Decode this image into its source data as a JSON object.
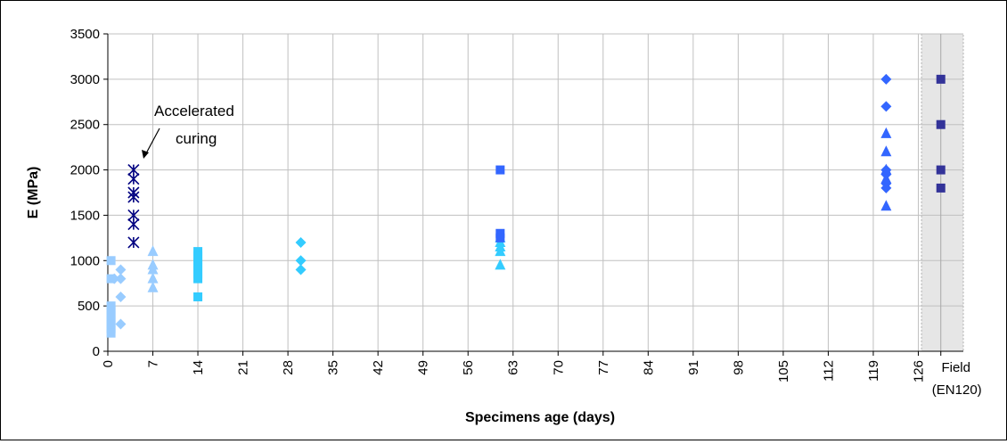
{
  "chart_data": {
    "type": "scatter",
    "title": "",
    "xlabel": "Specimens age (days)",
    "ylabel": "E (MPa)",
    "ylim": [
      0,
      3500
    ],
    "y_ticks": [
      0,
      500,
      1000,
      1500,
      2000,
      2500,
      3000,
      3500
    ],
    "xlim": [
      0,
      133
    ],
    "x_ticks": [
      0,
      7,
      14,
      21,
      28,
      35,
      42,
      49,
      56,
      63,
      70,
      77,
      84,
      91,
      98,
      105,
      112,
      119,
      126
    ],
    "field_label_line1": "Field",
    "field_label_line2": "(EN120)",
    "field_x_position": 129.5,
    "field_zone": [
      126.5,
      133
    ],
    "grid": true,
    "legend": "none",
    "annotation": {
      "line1": "Accelerated",
      "line2": "curing",
      "points_to": {
        "x": 4,
        "y": 2000
      }
    },
    "series": [
      {
        "marker": "square",
        "color": "#99ccff",
        "points": [
          [
            0.5,
            1000
          ],
          [
            0.5,
            800
          ],
          [
            0.5,
            500
          ],
          [
            0.5,
            450
          ],
          [
            0.5,
            400
          ],
          [
            0.5,
            350
          ],
          [
            0.5,
            300
          ],
          [
            0.5,
            250
          ],
          [
            0.5,
            200
          ]
        ]
      },
      {
        "marker": "diamond",
        "color": "#99ccff",
        "points": [
          [
            1,
            800
          ],
          [
            2,
            900
          ],
          [
            2,
            800
          ],
          [
            2,
            600
          ],
          [
            2,
            300
          ]
        ]
      },
      {
        "marker": "star",
        "color": "#000080",
        "points": [
          [
            4,
            2000
          ],
          [
            4,
            1900
          ],
          [
            4,
            1750
          ],
          [
            4,
            1700
          ],
          [
            4,
            1500
          ],
          [
            4,
            1400
          ],
          [
            4,
            1200
          ]
        ]
      },
      {
        "marker": "triangle",
        "color": "#99ccff",
        "points": [
          [
            7,
            1100
          ],
          [
            7,
            950
          ],
          [
            7,
            900
          ],
          [
            7,
            800
          ],
          [
            7,
            700
          ]
        ]
      },
      {
        "marker": "square",
        "color": "#33ccff",
        "points": [
          [
            14,
            1100
          ],
          [
            14,
            1050
          ],
          [
            14,
            1000
          ],
          [
            14,
            950
          ],
          [
            14,
            900
          ],
          [
            14,
            850
          ],
          [
            14,
            800
          ],
          [
            14,
            600
          ]
        ]
      },
      {
        "marker": "diamond",
        "color": "#33ccff",
        "points": [
          [
            30,
            1200
          ],
          [
            30,
            1000
          ],
          [
            30,
            900
          ]
        ]
      },
      {
        "marker": "triangle",
        "color": "#33ccff",
        "points": [
          [
            61,
            1250
          ],
          [
            61,
            1200
          ],
          [
            61,
            1150
          ],
          [
            61,
            1100
          ],
          [
            61,
            950
          ]
        ]
      },
      {
        "marker": "square",
        "color": "#3366ff",
        "points": [
          [
            61,
            2000
          ],
          [
            61,
            1300
          ],
          [
            61,
            1250
          ]
        ]
      },
      {
        "marker": "diamond",
        "color": "#3366ff",
        "points": [
          [
            121,
            3000
          ],
          [
            121,
            2700
          ],
          [
            121,
            2000
          ],
          [
            121,
            1950
          ],
          [
            121,
            1850
          ],
          [
            121,
            1800
          ]
        ]
      },
      {
        "marker": "triangle",
        "color": "#3366ff",
        "points": [
          [
            121,
            2400
          ],
          [
            121,
            2200
          ],
          [
            121,
            2000
          ],
          [
            121,
            1900
          ],
          [
            121,
            1600
          ]
        ]
      },
      {
        "marker": "square",
        "color": "#333399",
        "points": [
          [
            129.5,
            3000
          ],
          [
            129.5,
            2500
          ],
          [
            129.5,
            2000
          ],
          [
            129.5,
            1800
          ]
        ]
      }
    ]
  }
}
